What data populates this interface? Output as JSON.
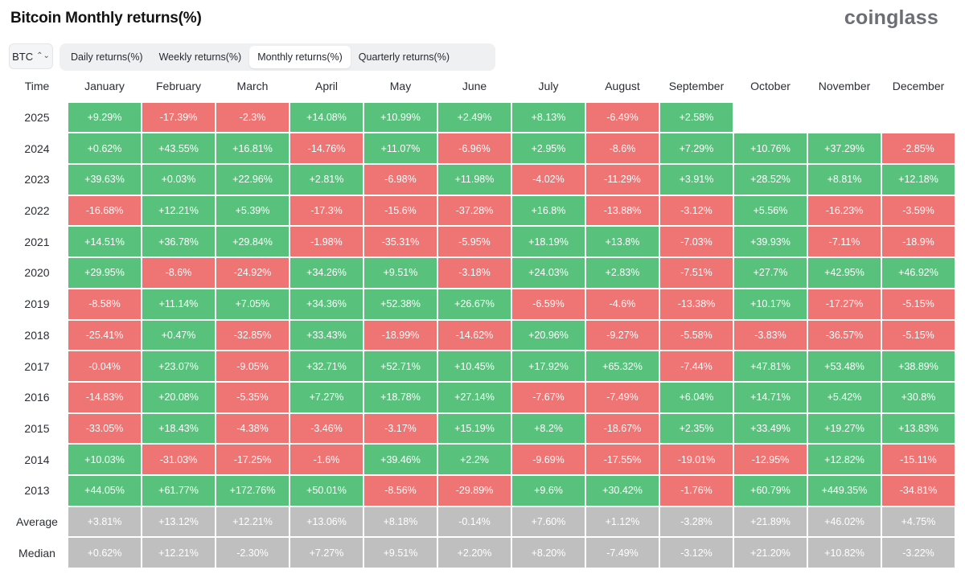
{
  "header": {
    "title": "Bitcoin Monthly returns(%)",
    "brand": "coinglass"
  },
  "controls": {
    "asset": "BTC",
    "tabs": [
      "Daily returns(%)",
      "Weekly returns(%)",
      "Monthly returns(%)",
      "Quarterly returns(%)"
    ],
    "active_tab": "Monthly returns(%)"
  },
  "colors": {
    "positive": "#58c27d",
    "negative": "#ef7474",
    "summary": "#bfbfbf"
  },
  "table": {
    "corner": "Time",
    "months": [
      "January",
      "February",
      "March",
      "April",
      "May",
      "June",
      "July",
      "August",
      "September",
      "October",
      "November",
      "December"
    ],
    "rows": [
      {
        "label": "2025",
        "values": [
          "+9.29%",
          "-17.39%",
          "-2.3%",
          "+14.08%",
          "+10.99%",
          "+2.49%",
          "+8.13%",
          "-6.49%",
          "+2.58%",
          "",
          "",
          ""
        ]
      },
      {
        "label": "2024",
        "values": [
          "+0.62%",
          "+43.55%",
          "+16.81%",
          "-14.76%",
          "+11.07%",
          "-6.96%",
          "+2.95%",
          "-8.6%",
          "+7.29%",
          "+10.76%",
          "+37.29%",
          "-2.85%"
        ]
      },
      {
        "label": "2023",
        "values": [
          "+39.63%",
          "+0.03%",
          "+22.96%",
          "+2.81%",
          "-6.98%",
          "+11.98%",
          "-4.02%",
          "-11.29%",
          "+3.91%",
          "+28.52%",
          "+8.81%",
          "+12.18%"
        ]
      },
      {
        "label": "2022",
        "values": [
          "-16.68%",
          "+12.21%",
          "+5.39%",
          "-17.3%",
          "-15.6%",
          "-37.28%",
          "+16.8%",
          "-13.88%",
          "-3.12%",
          "+5.56%",
          "-16.23%",
          "-3.59%"
        ]
      },
      {
        "label": "2021",
        "values": [
          "+14.51%",
          "+36.78%",
          "+29.84%",
          "-1.98%",
          "-35.31%",
          "-5.95%",
          "+18.19%",
          "+13.8%",
          "-7.03%",
          "+39.93%",
          "-7.11%",
          "-18.9%"
        ]
      },
      {
        "label": "2020",
        "values": [
          "+29.95%",
          "-8.6%",
          "-24.92%",
          "+34.26%",
          "+9.51%",
          "-3.18%",
          "+24.03%",
          "+2.83%",
          "-7.51%",
          "+27.7%",
          "+42.95%",
          "+46.92%"
        ]
      },
      {
        "label": "2019",
        "values": [
          "-8.58%",
          "+11.14%",
          "+7.05%",
          "+34.36%",
          "+52.38%",
          "+26.67%",
          "-6.59%",
          "-4.6%",
          "-13.38%",
          "+10.17%",
          "-17.27%",
          "-5.15%"
        ]
      },
      {
        "label": "2018",
        "values": [
          "-25.41%",
          "+0.47%",
          "-32.85%",
          "+33.43%",
          "-18.99%",
          "-14.62%",
          "+20.96%",
          "-9.27%",
          "-5.58%",
          "-3.83%",
          "-36.57%",
          "-5.15%"
        ]
      },
      {
        "label": "2017",
        "values": [
          "-0.04%",
          "+23.07%",
          "-9.05%",
          "+32.71%",
          "+52.71%",
          "+10.45%",
          "+17.92%",
          "+65.32%",
          "-7.44%",
          "+47.81%",
          "+53.48%",
          "+38.89%"
        ]
      },
      {
        "label": "2016",
        "values": [
          "-14.83%",
          "+20.08%",
          "-5.35%",
          "+7.27%",
          "+18.78%",
          "+27.14%",
          "-7.67%",
          "-7.49%",
          "+6.04%",
          "+14.71%",
          "+5.42%",
          "+30.8%"
        ]
      },
      {
        "label": "2015",
        "values": [
          "-33.05%",
          "+18.43%",
          "-4.38%",
          "-3.46%",
          "-3.17%",
          "+15.19%",
          "+8.2%",
          "-18.67%",
          "+2.35%",
          "+33.49%",
          "+19.27%",
          "+13.83%"
        ]
      },
      {
        "label": "2014",
        "values": [
          "+10.03%",
          "-31.03%",
          "-17.25%",
          "-1.6%",
          "+39.46%",
          "+2.2%",
          "-9.69%",
          "-17.55%",
          "-19.01%",
          "-12.95%",
          "+12.82%",
          "-15.11%"
        ]
      },
      {
        "label": "2013",
        "values": [
          "+44.05%",
          "+61.77%",
          "+172.76%",
          "+50.01%",
          "-8.56%",
          "-29.89%",
          "+9.6%",
          "+30.42%",
          "-1.76%",
          "+60.79%",
          "+449.35%",
          "-34.81%"
        ]
      }
    ],
    "summary": [
      {
        "label": "Average",
        "values": [
          "+3.81%",
          "+13.12%",
          "+12.21%",
          "+13.06%",
          "+8.18%",
          "-0.14%",
          "+7.60%",
          "+1.12%",
          "-3.28%",
          "+21.89%",
          "+46.02%",
          "+4.75%"
        ]
      },
      {
        "label": "Median",
        "values": [
          "+0.62%",
          "+12.21%",
          "-2.30%",
          "+7.27%",
          "+9.51%",
          "+2.20%",
          "+8.20%",
          "-7.49%",
          "-3.12%",
          "+21.20%",
          "+10.82%",
          "-3.22%"
        ]
      }
    ]
  }
}
